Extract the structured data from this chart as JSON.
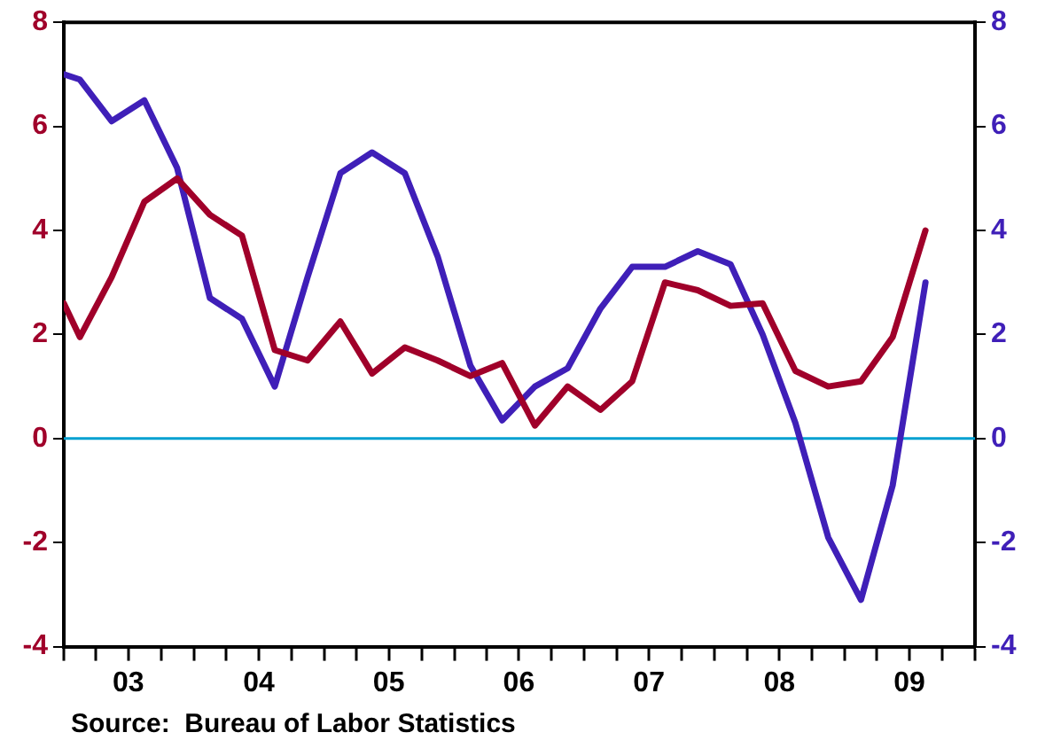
{
  "chart_data": {
    "type": "line",
    "xlim": [
      "2003-01-01",
      "2010-01-01"
    ],
    "xticks": [
      {
        "value": "2003-01-01",
        "label": null
      },
      {
        "value": "2003-04-01",
        "label": null
      },
      {
        "value": "2003-07-01",
        "label": "03"
      },
      {
        "value": "2003-10-01",
        "label": null
      },
      {
        "value": "2004-01-01",
        "label": null
      },
      {
        "value": "2004-04-01",
        "label": null
      },
      {
        "value": "2004-07-01",
        "label": "04"
      },
      {
        "value": "2004-10-01",
        "label": null
      },
      {
        "value": "2005-01-01",
        "label": null
      },
      {
        "value": "2005-04-01",
        "label": null
      },
      {
        "value": "2005-07-01",
        "label": "05"
      },
      {
        "value": "2005-10-01",
        "label": null
      },
      {
        "value": "2006-01-01",
        "label": null
      },
      {
        "value": "2006-04-01",
        "label": null
      },
      {
        "value": "2006-07-01",
        "label": "06"
      },
      {
        "value": "2006-10-01",
        "label": null
      },
      {
        "value": "2007-01-01",
        "label": null
      },
      {
        "value": "2007-04-01",
        "label": null
      },
      {
        "value": "2007-07-01",
        "label": "07"
      },
      {
        "value": "2007-10-01",
        "label": null
      },
      {
        "value": "2008-01-01",
        "label": null
      },
      {
        "value": "2008-04-01",
        "label": null
      },
      {
        "value": "2008-07-01",
        "label": "08"
      },
      {
        "value": "2008-10-01",
        "label": null
      },
      {
        "value": "2009-01-01",
        "label": null
      },
      {
        "value": "2009-04-01",
        "label": null
      },
      {
        "value": "2009-07-01",
        "label": "09"
      },
      {
        "value": "2009-10-01",
        "label": null
      },
      {
        "value": "2010-01-01",
        "label": null
      }
    ],
    "x": [
      "2003-01-01",
      "2003-02-15",
      "2003-05-15",
      "2003-08-15",
      "2003-11-15",
      "2004-02-15",
      "2004-05-15",
      "2004-08-15",
      "2004-11-15",
      "2005-02-15",
      "2005-05-15",
      "2005-08-15",
      "2005-11-15",
      "2006-02-15",
      "2006-05-15",
      "2006-08-15",
      "2006-11-15",
      "2007-02-15",
      "2007-05-15",
      "2007-08-15",
      "2007-11-15",
      "2008-02-15",
      "2008-05-15",
      "2008-08-15",
      "2008-11-15",
      "2009-02-15",
      "2009-05-15",
      "2009-08-15"
    ],
    "ylim": [
      -4,
      8
    ],
    "yticks": [
      -4,
      -2,
      0,
      2,
      4,
      6,
      8
    ],
    "y2lim": [
      -4,
      8
    ],
    "y2ticks": [
      -4,
      -2,
      0,
      2,
      4,
      6,
      8
    ],
    "series": [
      {
        "color": "#a0002a",
        "values": [
          2.6,
          1.95,
          3.1,
          4.55,
          5.0,
          4.3,
          3.9,
          1.7,
          1.5,
          2.25,
          1.25,
          1.75,
          1.5,
          1.2,
          1.45,
          0.25,
          1.0,
          0.55,
          1.1,
          3.0,
          2.85,
          2.55,
          2.6,
          1.3,
          1.0,
          1.1,
          1.95,
          4.0
        ]
      },
      {
        "color": "#3f1fb8",
        "axis": "y2",
        "values": [
          7.0,
          6.9,
          6.1,
          6.5,
          5.2,
          2.7,
          2.3,
          1.0,
          3.1,
          5.1,
          5.5,
          5.1,
          3.5,
          1.4,
          0.35,
          1.0,
          1.35,
          2.5,
          3.3,
          3.3,
          3.6,
          3.35,
          2.0,
          0.3,
          -1.9,
          -3.1,
          -0.9,
          3.0
        ]
      }
    ],
    "ref_lines": [
      {
        "axis": "y",
        "value": 0,
        "color": "#00a0d0"
      }
    ],
    "legend": false,
    "grid": false,
    "marker": "none",
    "line_style": "solid",
    "annotations": [
      "Source:  Bureau of Labor Statistics"
    ]
  }
}
